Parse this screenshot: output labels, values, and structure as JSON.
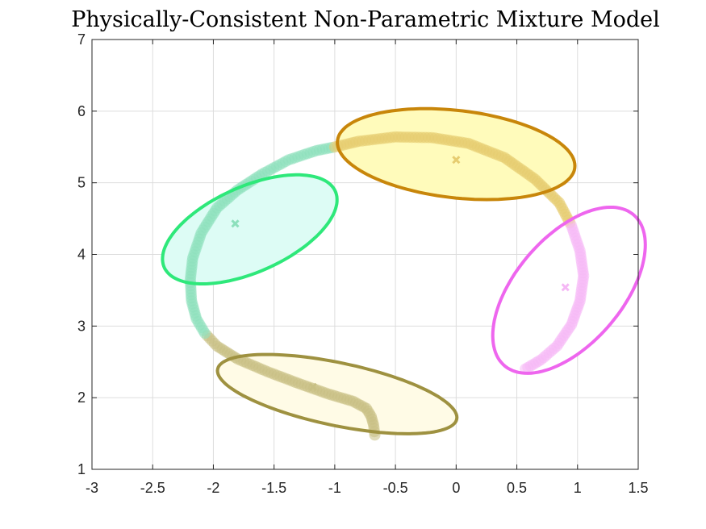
{
  "chart_data": {
    "type": "scatter",
    "title": "Physically-Consistent Non-Parametric Mixture Model",
    "xlabel": "",
    "ylabel": "",
    "xlim": [
      -3,
      1.5
    ],
    "ylim": [
      1,
      7
    ],
    "xticks": [
      "-3",
      "-2.5",
      "-2",
      "-1.5",
      "-1",
      "-0.5",
      "0",
      "0.5",
      "1",
      "1.5"
    ],
    "yticks": [
      "1",
      "2",
      "3",
      "4",
      "5",
      "6",
      "7"
    ],
    "grid": true,
    "trajectory": [
      [
        -0.67,
        1.48
      ],
      [
        -0.68,
        1.62
      ],
      [
        -0.7,
        1.74
      ],
      [
        -0.74,
        1.85
      ],
      [
        -0.85,
        1.95
      ],
      [
        -1.05,
        2.05
      ],
      [
        -1.3,
        2.2
      ],
      [
        -1.55,
        2.36
      ],
      [
        -1.8,
        2.54
      ],
      [
        -1.97,
        2.72
      ],
      [
        -2.07,
        2.9
      ],
      [
        -2.14,
        3.1
      ],
      [
        -2.18,
        3.35
      ],
      [
        -2.19,
        3.65
      ],
      [
        -2.17,
        3.95
      ],
      [
        -2.1,
        4.3
      ],
      [
        -1.97,
        4.65
      ],
      [
        -1.8,
        4.9
      ],
      [
        -1.6,
        5.12
      ],
      [
        -1.38,
        5.32
      ],
      [
        -1.15,
        5.45
      ],
      [
        -1.0,
        5.5
      ],
      [
        -0.8,
        5.58
      ],
      [
        -0.5,
        5.64
      ],
      [
        -0.2,
        5.63
      ],
      [
        0.1,
        5.55
      ],
      [
        0.4,
        5.35
      ],
      [
        0.65,
        5.05
      ],
      [
        0.85,
        4.72
      ],
      [
        0.95,
        4.4
      ],
      [
        1.02,
        4.05
      ],
      [
        1.05,
        3.7
      ],
      [
        1.02,
        3.35
      ],
      [
        0.95,
        3.02
      ],
      [
        0.83,
        2.72
      ],
      [
        0.7,
        2.53
      ],
      [
        0.57,
        2.4
      ]
    ],
    "components": [
      {
        "id": "brown",
        "center": [
          -1.18,
          2.15
        ],
        "edge": "#9e9140",
        "fill": "#fffbe6",
        "point_color": "#c8c084",
        "ellipse": {
          "cx": -0.98,
          "cy": 2.05,
          "rx": 1.05,
          "ry": 0.42,
          "angle_deg": -22
        }
      },
      {
        "id": "green",
        "center": [
          -1.82,
          4.43
        ],
        "edge": "#2ee87a",
        "fill": "#ddfcf5",
        "point_color": "#8ce0bc",
        "ellipse": {
          "cx": -1.7,
          "cy": 4.35,
          "rx": 0.92,
          "ry": 0.5,
          "angle_deg": 48
        }
      },
      {
        "id": "orange",
        "center": [
          0.0,
          5.32
        ],
        "edge": "#c8860a",
        "fill": "#fffbbb",
        "point_color": "#e6cc70",
        "ellipse": {
          "cx": 0.0,
          "cy": 5.4,
          "rx": 1.0,
          "ry": 0.6,
          "angle_deg": -15
        }
      },
      {
        "id": "magenta",
        "center": [
          0.9,
          3.54
        ],
        "edge": "#ee66ee",
        "fill": "#ffffff",
        "point_color": "#f5b8f5",
        "ellipse": {
          "cx": 0.93,
          "cy": 3.5,
          "rx": 1.22,
          "ry": 0.5,
          "angle_deg": 70
        }
      }
    ],
    "segment_boundaries": [
      10,
      21,
      29
    ]
  }
}
